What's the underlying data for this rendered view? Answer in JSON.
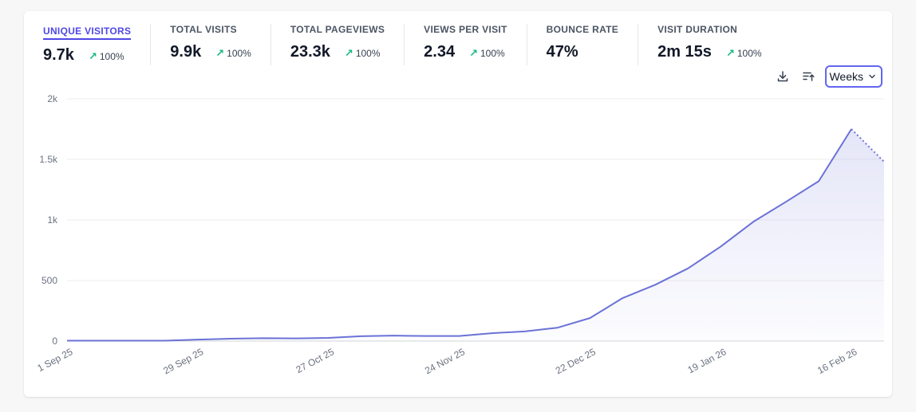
{
  "metrics": [
    {
      "label": "UNIQUE VISITORS",
      "value": "9.7k",
      "change": "100%",
      "active": true
    },
    {
      "label": "TOTAL VISITS",
      "value": "9.9k",
      "change": "100%",
      "active": false
    },
    {
      "label": "TOTAL PAGEVIEWS",
      "value": "23.3k",
      "change": "100%",
      "active": false
    },
    {
      "label": "VIEWS PER VISIT",
      "value": "2.34",
      "change": "100%",
      "active": false
    },
    {
      "label": "BOUNCE RATE",
      "value": "47%",
      "change": "",
      "active": false
    },
    {
      "label": "VISIT DURATION",
      "value": "2m 15s",
      "change": "100%",
      "active": false
    }
  ],
  "controls": {
    "interval_label": "Weeks"
  },
  "colors": {
    "accent": "#4f46e5",
    "line": "#6b72d6",
    "fill": "#eef0fb",
    "positive": "#10b981"
  },
  "chart_data": {
    "type": "line",
    "title": "",
    "xlabel": "",
    "ylabel": "",
    "ylim": [
      0,
      2000
    ],
    "yticks": [
      0,
      500,
      1000,
      1500,
      2000
    ],
    "ytick_labels": [
      "0",
      "500",
      "1k",
      "1.5k",
      "2k"
    ],
    "x_labels": [
      "1 Sep 25",
      "29 Sep 25",
      "27 Oct 25",
      "24 Nov 25",
      "22 Dec 25",
      "19 Jan 26",
      "16 Feb 26"
    ],
    "x_label_weeks": [
      0,
      4,
      8,
      12,
      16,
      20,
      24
    ],
    "series": [
      {
        "name": "Unique visitors",
        "values": [
          3,
          3,
          3,
          3,
          12,
          20,
          24,
          22,
          26,
          40,
          45,
          42,
          42,
          65,
          80,
          110,
          190,
          355,
          465,
          600,
          780,
          985,
          1150,
          1320,
          1750,
          1480
        ],
        "partial_last": true
      }
    ]
  }
}
